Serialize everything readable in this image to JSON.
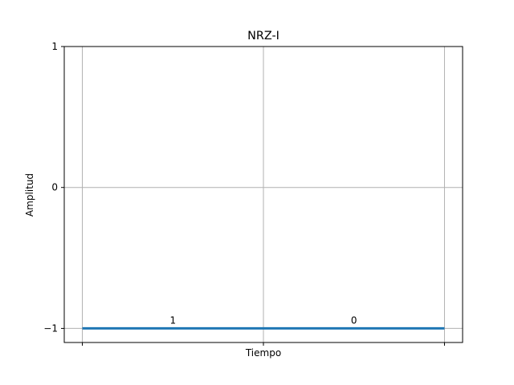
{
  "chart_data": {
    "type": "line",
    "title": "NRZ-I",
    "xlabel": "Tiempo",
    "ylabel": "Amplitud",
    "ylim": [
      -1,
      1
    ],
    "xlim": [
      -0.1,
      2.1
    ],
    "yticks": [
      {
        "value": -1,
        "label": "−1"
      },
      {
        "value": 0,
        "label": "0"
      },
      {
        "value": 1,
        "label": "1"
      }
    ],
    "x_gridlines": [
      0,
      1,
      2
    ],
    "grid": true,
    "series": [
      {
        "color": "#1f77b4",
        "x": [
          0,
          1,
          2
        ],
        "y": [
          -1,
          -1,
          -1
        ],
        "step": true
      }
    ],
    "bits": [
      {
        "label": "1",
        "x": 0.5
      },
      {
        "label": "0",
        "x": 1.5
      }
    ]
  }
}
